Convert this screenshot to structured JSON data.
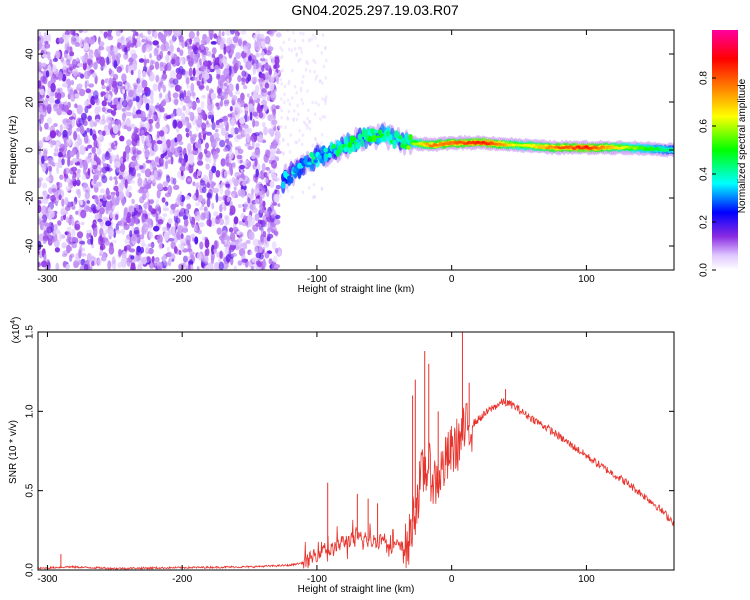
{
  "title": "GN04.2025.297.19.03.R07",
  "chart_data": [
    {
      "type": "heatmap",
      "title": "GN04.2025.297.19.03.R07",
      "xlabel": "Height of straight line (km)",
      "ylabel": "Frequency (Hz)",
      "xlim": [
        -307,
        165
      ],
      "ylim": [
        -50,
        50
      ],
      "x_ticks": [
        -300,
        -200,
        -100,
        0,
        100
      ],
      "y_ticks": [
        -40,
        -20,
        0,
        20,
        40
      ],
      "colorbar": {
        "label": "Normalized spectral amplitude",
        "range": [
          0.0,
          1.0
        ],
        "ticks": [
          "0.0",
          "0.2",
          "0.4",
          "0.6",
          "0.8"
        ],
        "colors": [
          "#ffffff",
          "#e0c8ff",
          "#8a2be2",
          "#0000ff",
          "#00ffff",
          "#00ff00",
          "#ffff00",
          "#ff8000",
          "#ff0000",
          "#ff00a0"
        ]
      },
      "features": {
        "noise_region_x": [
          -307,
          -128
        ],
        "ridge": [
          {
            "x": -125,
            "f": -13,
            "amp": 0.35
          },
          {
            "x": -110,
            "f": -6,
            "amp": 0.35
          },
          {
            "x": -95,
            "f": -2,
            "amp": 0.38
          },
          {
            "x": -80,
            "f": 1,
            "amp": 0.42
          },
          {
            "x": -65,
            "f": 5,
            "amp": 0.45
          },
          {
            "x": -50,
            "f": 7,
            "amp": 0.45
          },
          {
            "x": -40,
            "f": 4,
            "amp": 0.42
          },
          {
            "x": -30,
            "f": 3,
            "amp": 0.55
          },
          {
            "x": -15,
            "f": 2,
            "amp": 0.75
          },
          {
            "x": 0,
            "f": 3,
            "amp": 0.78
          },
          {
            "x": 25,
            "f": 3,
            "amp": 0.85
          },
          {
            "x": 50,
            "f": 2,
            "amp": 0.6
          },
          {
            "x": 75,
            "f": 1,
            "amp": 0.75
          },
          {
            "x": 100,
            "f": 1,
            "amp": 0.85
          },
          {
            "x": 130,
            "f": 1,
            "amp": 0.6
          },
          {
            "x": 165,
            "f": 0,
            "amp": 0.4
          }
        ]
      }
    },
    {
      "type": "line",
      "xlabel": "Height of straight line (km)",
      "ylabel": "SNR (10 * v/v)",
      "y_multiplier": "(x10",
      "y_multiplier_exp": "4",
      "xlim": [
        -307,
        165
      ],
      "ylim": [
        0.0,
        1.5
      ],
      "x_ticks": [
        -300,
        -200,
        -100,
        0,
        100
      ],
      "y_ticks": [
        "0.0",
        "0.5",
        "1.0",
        "1.5"
      ],
      "series": [
        {
          "color": "#e8332c",
          "x": [
            -307,
            -285,
            -250,
            -200,
            -150,
            -120,
            -108,
            -100,
            -95,
            -90,
            -80,
            -70,
            -60,
            -50,
            -40,
            -33,
            -28,
            -22,
            -18,
            -12,
            -8,
            -3,
            0,
            5,
            10,
            20,
            30,
            38,
            45,
            55,
            70,
            90,
            110,
            130,
            150,
            165
          ],
          "y": [
            0.01,
            0.02,
            0.01,
            0.015,
            0.02,
            0.03,
            0.05,
            0.1,
            0.15,
            0.12,
            0.18,
            0.2,
            0.18,
            0.2,
            0.15,
            0.12,
            0.35,
            0.6,
            0.65,
            0.55,
            0.62,
            0.7,
            0.75,
            0.8,
            0.88,
            0.95,
            1.02,
            1.06,
            1.04,
            0.98,
            0.9,
            0.78,
            0.66,
            0.55,
            0.42,
            0.3
          ]
        }
      ],
      "spikes": [
        {
          "x": -290,
          "y": 0.1
        },
        {
          "x": -92,
          "y": 0.55
        },
        {
          "x": -70,
          "y": 0.48
        },
        {
          "x": -62,
          "y": 0.45
        },
        {
          "x": -55,
          "y": 0.42
        },
        {
          "x": -29,
          "y": 1.1
        },
        {
          "x": -27,
          "y": 1.2
        },
        {
          "x": -20,
          "y": 1.38
        },
        {
          "x": -17,
          "y": 1.3
        },
        {
          "x": -10,
          "y": 1.0
        },
        {
          "x": 8,
          "y": 1.52
        },
        {
          "x": 13,
          "y": 1.18
        },
        {
          "x": 40,
          "y": 1.14
        }
      ]
    }
  ]
}
